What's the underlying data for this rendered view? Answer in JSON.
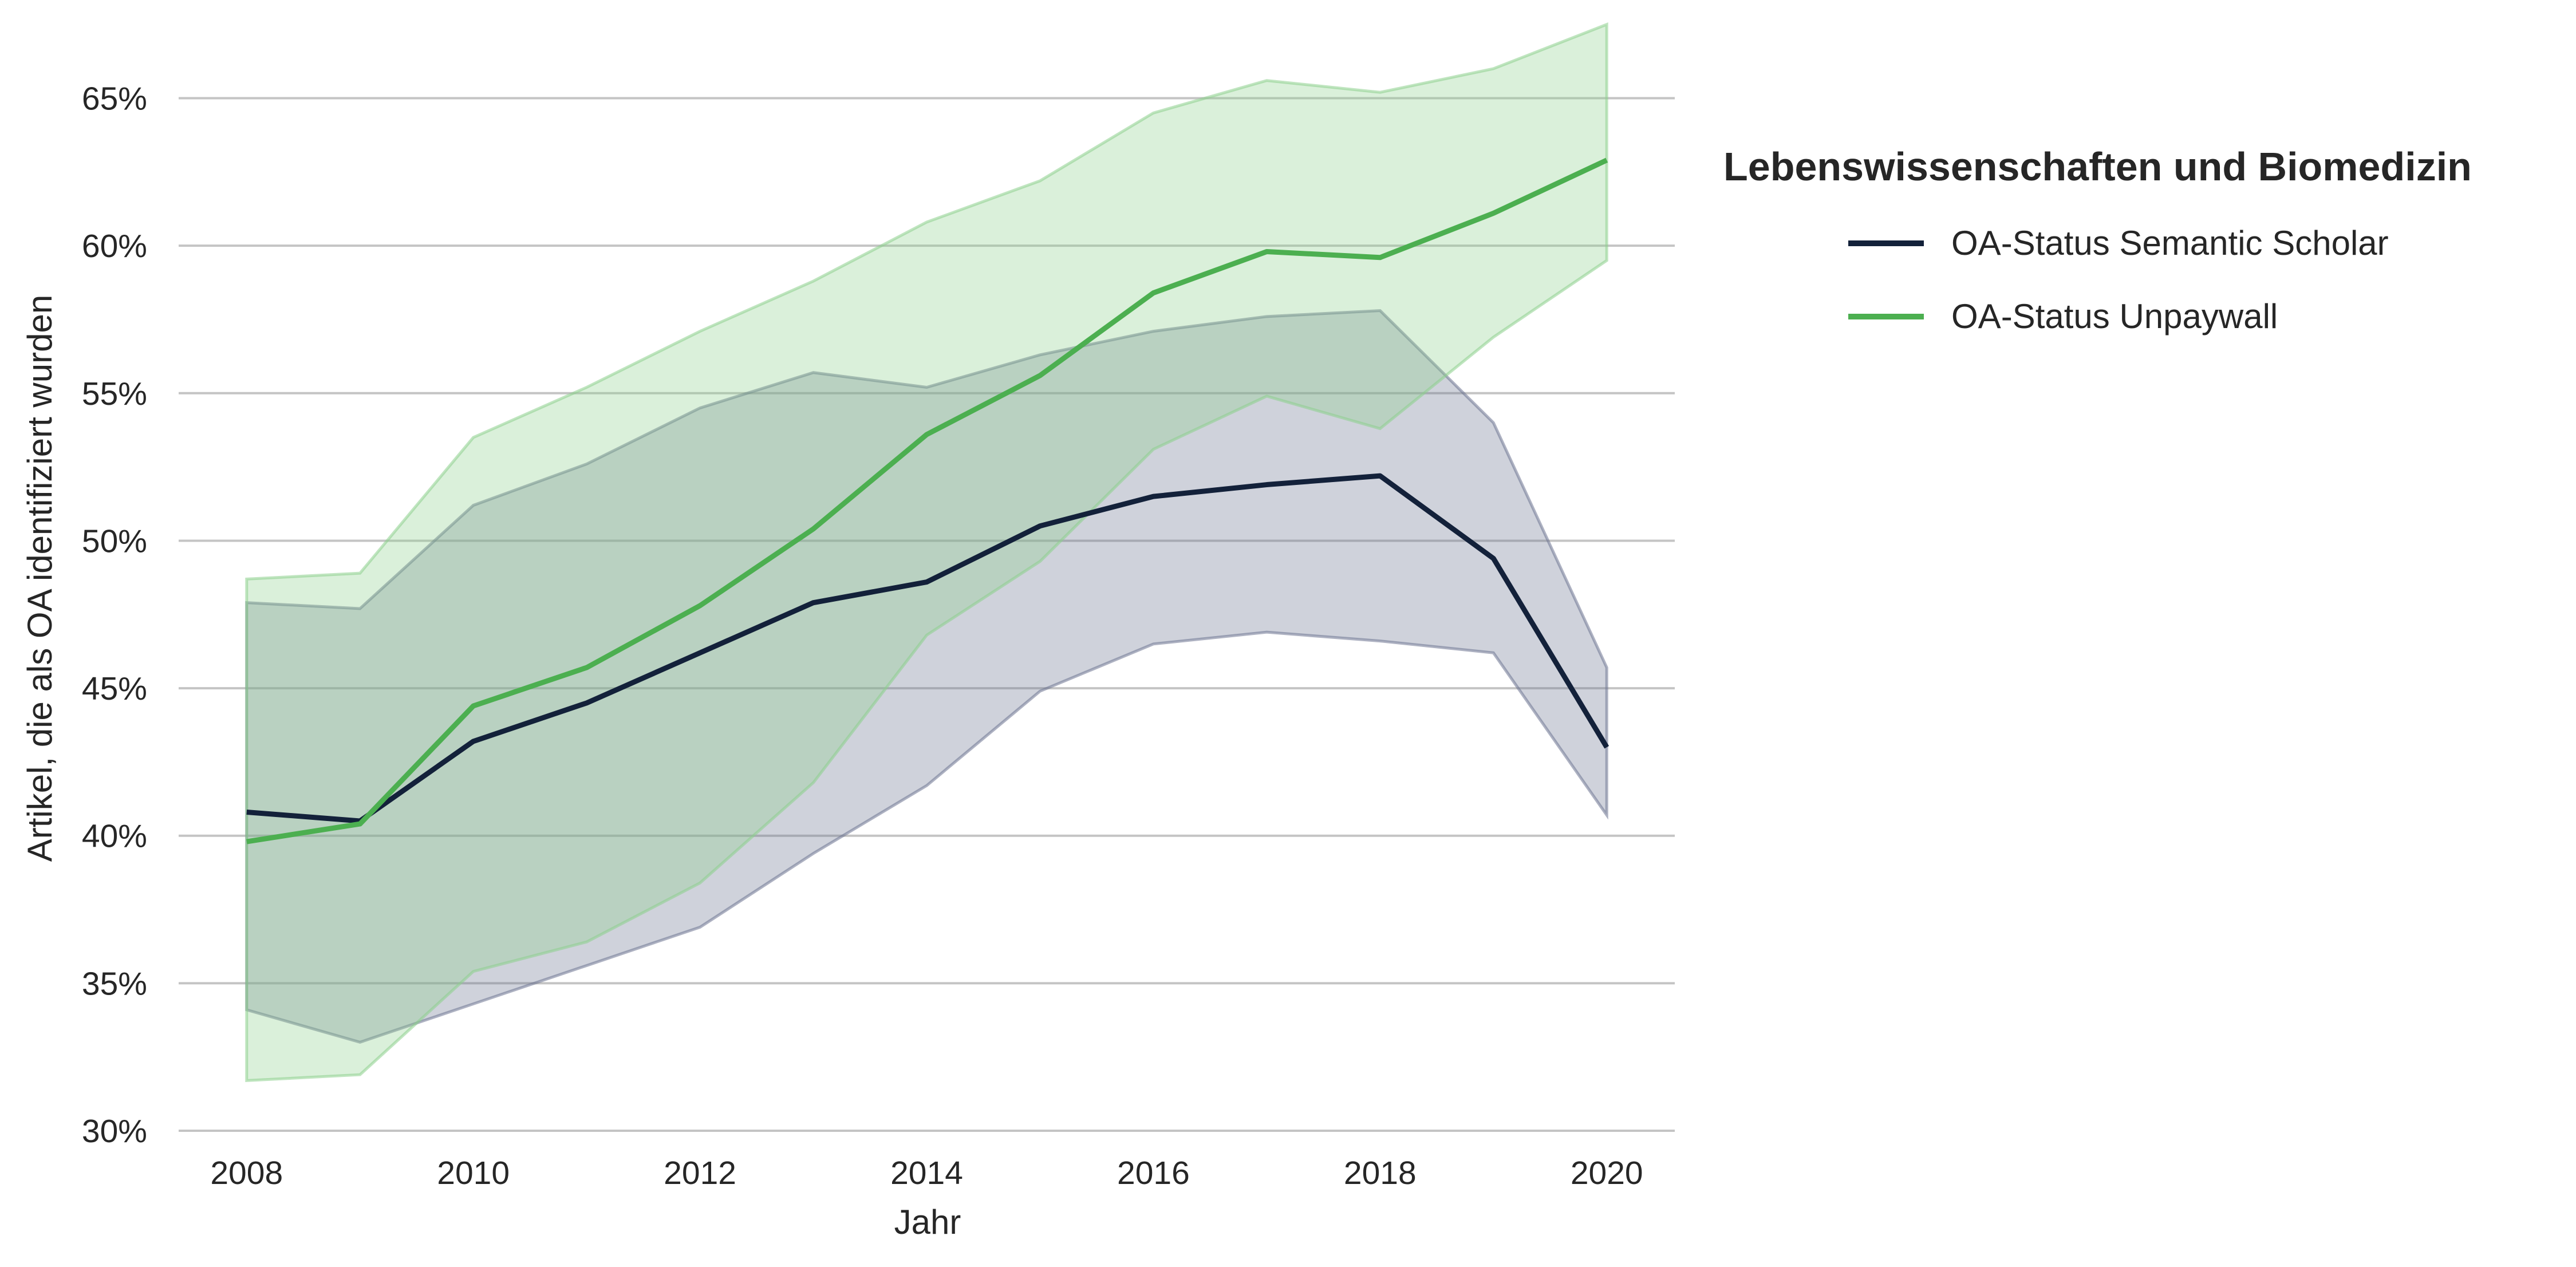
{
  "chart_data": {
    "type": "line",
    "title": "",
    "xlabel": "Jahr",
    "ylabel": "Artikel, die als OA identifiziert wurden",
    "x": [
      2008,
      2009,
      2010,
      2011,
      2012,
      2013,
      2014,
      2015,
      2016,
      2017,
      2018,
      2019,
      2020
    ],
    "xticks": [
      2008,
      2010,
      2012,
      2014,
      2016,
      2018,
      2020
    ],
    "xlim": [
      2007.4,
      2020.6
    ],
    "ylim": [
      30,
      66
    ],
    "yticks": [
      30,
      35,
      40,
      45,
      50,
      55,
      60,
      65
    ],
    "ytick_labels": [
      "30%",
      "35%",
      "40%",
      "45%",
      "50%",
      "55%",
      "60%",
      "65%"
    ],
    "grid": "horizontal",
    "legend": {
      "title": "Lebenswissenschaften und Biomedizin",
      "placement": "outside-right"
    },
    "series": [
      {
        "name": "OA-Status Semantic Scholar",
        "color": "#13213a",
        "band_color": "#6b7290",
        "values": [
          40.8,
          40.5,
          43.2,
          44.5,
          46.2,
          47.9,
          48.6,
          50.5,
          51.5,
          51.9,
          52.2,
          49.4,
          43.0
        ],
        "lower": [
          34.1,
          33.0,
          34.3,
          35.6,
          36.9,
          39.4,
          41.7,
          44.9,
          46.5,
          46.9,
          46.6,
          46.2,
          40.7
        ],
        "upper": [
          47.9,
          47.7,
          51.2,
          52.6,
          54.5,
          55.7,
          55.2,
          56.3,
          57.1,
          57.6,
          57.8,
          54.0,
          45.7
        ]
      },
      {
        "name": "OA-Status Unpaywall",
        "color": "#4caf50",
        "band_color": "#8ccf8c",
        "values": [
          39.8,
          40.4,
          44.4,
          45.7,
          47.8,
          50.4,
          53.6,
          55.6,
          58.4,
          59.8,
          59.6,
          61.1,
          62.9
        ],
        "lower": [
          31.7,
          31.9,
          35.4,
          36.4,
          38.4,
          41.8,
          46.8,
          49.3,
          53.1,
          54.9,
          53.8,
          56.9,
          59.5
        ],
        "upper": [
          48.7,
          48.9,
          53.5,
          55.2,
          57.1,
          58.8,
          60.8,
          62.2,
          64.5,
          65.6,
          65.2,
          66.0,
          67.5
        ]
      }
    ]
  }
}
